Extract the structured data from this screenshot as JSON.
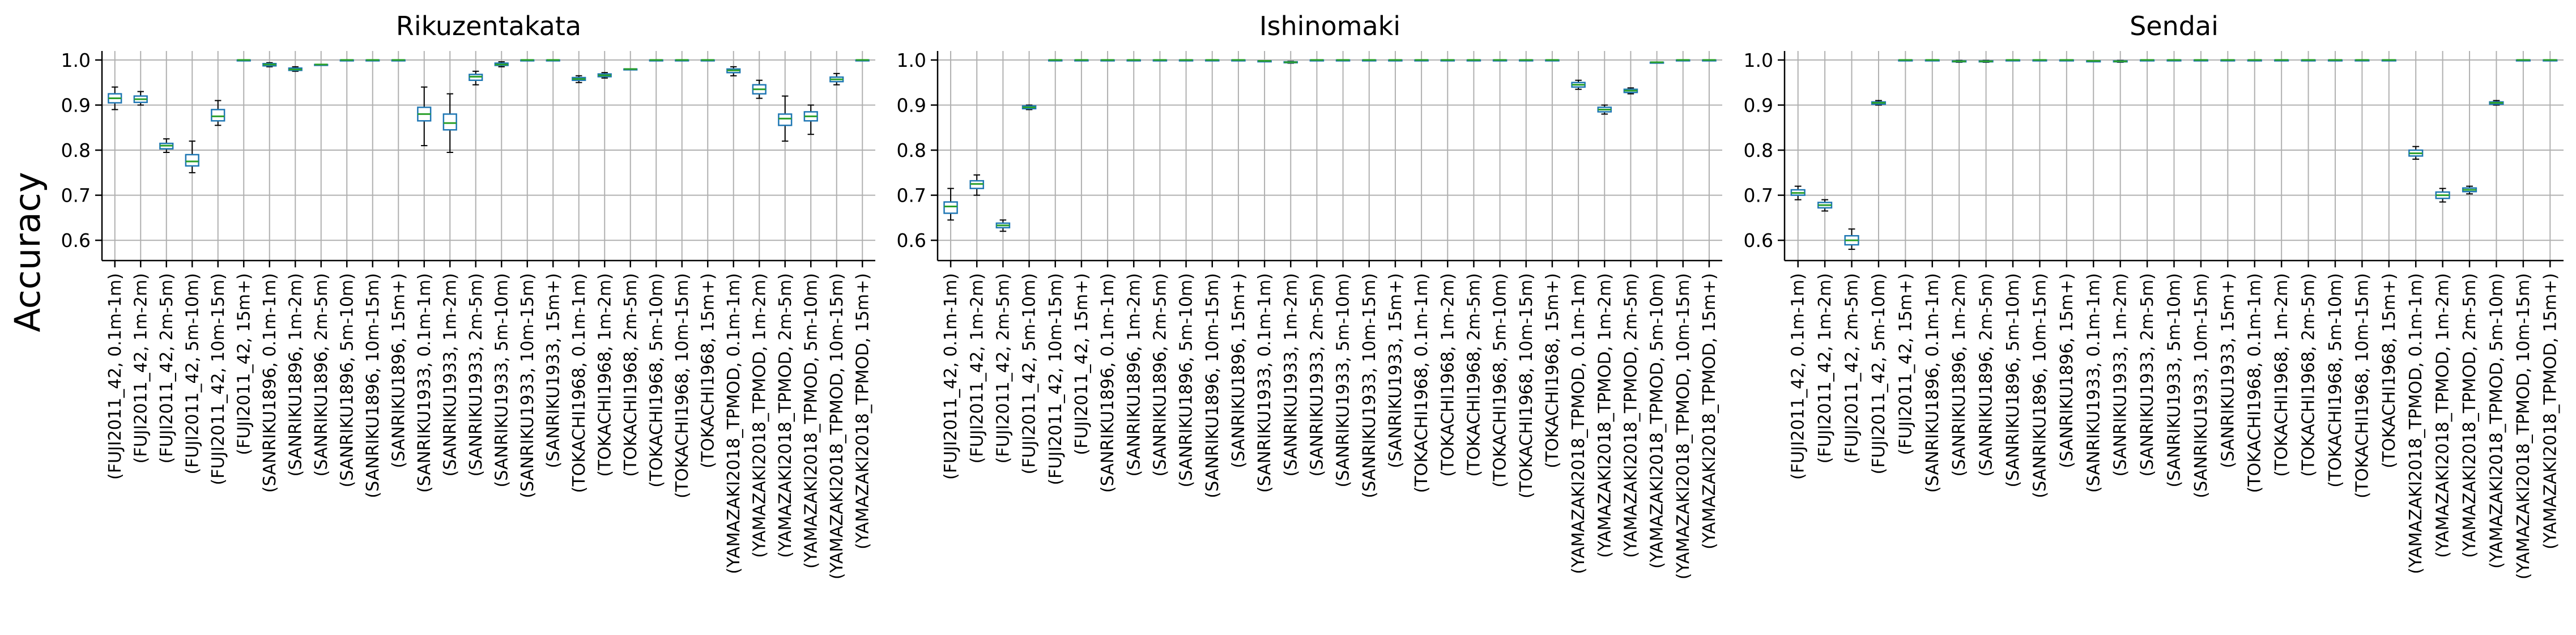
{
  "figure": {
    "ylabel": "Accuracy"
  },
  "chart_data": [
    {
      "type": "box",
      "title": "Rikuzentakata",
      "ylim": [
        0.555,
        1.02
      ],
      "yticks": [
        0.6,
        0.7,
        0.8,
        0.9,
        1.0
      ],
      "grid": true,
      "categories": [
        "(FUJI2011_42, 0.1m-1m)",
        "(FUJI2011_42, 1m-2m)",
        "(FUJI2011_42, 2m-5m)",
        "(FUJI2011_42, 5m-10m)",
        "(FUJI2011_42, 10m-15m)",
        "(FUJI2011_42, 15m+)",
        "(SANRIKU1896, 0.1m-1m)",
        "(SANRIKU1896, 1m-2m)",
        "(SANRIKU1896, 2m-5m)",
        "(SANRIKU1896, 5m-10m)",
        "(SANRIKU1896, 10m-15m)",
        "(SANRIKU1896, 15m+)",
        "(SANRIKU1933, 0.1m-1m)",
        "(SANRIKU1933, 1m-2m)",
        "(SANRIKU1933, 2m-5m)",
        "(SANRIKU1933, 5m-10m)",
        "(SANRIKU1933, 10m-15m)",
        "(SANRIKU1933, 15m+)",
        "(TOKACHI1968, 0.1m-1m)",
        "(TOKACHI1968, 1m-2m)",
        "(TOKACHI1968, 2m-5m)",
        "(TOKACHI1968, 5m-10m)",
        "(TOKACHI1968, 10m-15m)",
        "(TOKACHI1968, 15m+)",
        "(YAMAZAKI2018_TPMOD, 0.1m-1m)",
        "(YAMAZAKI2018_TPMOD, 1m-2m)",
        "(YAMAZAKI2018_TPMOD, 2m-5m)",
        "(YAMAZAKI2018_TPMOD, 5m-10m)",
        "(YAMAZAKI2018_TPMOD, 10m-15m)",
        "(YAMAZAKI2018_TPMOD, 15m+)"
      ],
      "boxes": [
        [
          0.89,
          0.905,
          0.915,
          0.925,
          0.94
        ],
        [
          0.9,
          0.906,
          0.913,
          0.92,
          0.93
        ],
        [
          0.795,
          0.803,
          0.81,
          0.815,
          0.825
        ],
        [
          0.75,
          0.765,
          0.775,
          0.79,
          0.82
        ],
        [
          0.855,
          0.865,
          0.875,
          0.89,
          0.91
        ],
        [
          1.0,
          1.0,
          1.0,
          1.0,
          1.0
        ],
        [
          0.985,
          0.987,
          0.99,
          0.992,
          0.994
        ],
        [
          0.975,
          0.977,
          0.979,
          0.982,
          0.985
        ],
        [
          0.99,
          0.99,
          0.99,
          0.99,
          0.99
        ],
        [
          1.0,
          1.0,
          1.0,
          1.0,
          1.0
        ],
        [
          1.0,
          1.0,
          1.0,
          1.0,
          1.0
        ],
        [
          1.0,
          1.0,
          1.0,
          1.0,
          1.0
        ],
        [
          0.81,
          0.865,
          0.88,
          0.895,
          0.94
        ],
        [
          0.795,
          0.845,
          0.86,
          0.88,
          0.925
        ],
        [
          0.945,
          0.955,
          0.963,
          0.968,
          0.975
        ],
        [
          0.985,
          0.988,
          0.99,
          0.993,
          0.996
        ],
        [
          1.0,
          1.0,
          1.0,
          1.0,
          1.0
        ],
        [
          1.0,
          1.0,
          1.0,
          1.0,
          1.0
        ],
        [
          0.95,
          0.955,
          0.958,
          0.961,
          0.965
        ],
        [
          0.96,
          0.963,
          0.966,
          0.969,
          0.972
        ],
        [
          0.98,
          0.98,
          0.98,
          0.98,
          0.98
        ],
        [
          1.0,
          1.0,
          1.0,
          1.0,
          1.0
        ],
        [
          1.0,
          1.0,
          1.0,
          1.0,
          1.0
        ],
        [
          1.0,
          1.0,
          1.0,
          1.0,
          1.0
        ],
        [
          0.965,
          0.972,
          0.977,
          0.98,
          0.985
        ],
        [
          0.915,
          0.925,
          0.935,
          0.945,
          0.955
        ],
        [
          0.82,
          0.855,
          0.87,
          0.88,
          0.92
        ],
        [
          0.835,
          0.865,
          0.875,
          0.885,
          0.9
        ],
        [
          0.945,
          0.952,
          0.957,
          0.962,
          0.97
        ],
        [
          1.0,
          1.0,
          1.0,
          1.0,
          1.0
        ]
      ]
    },
    {
      "type": "box",
      "title": "Ishinomaki",
      "ylim": [
        0.555,
        1.02
      ],
      "yticks": [
        0.6,
        0.7,
        0.8,
        0.9,
        1.0
      ],
      "grid": true,
      "categories": [
        "(FUJI2011_42, 0.1m-1m)",
        "(FUJI2011_42, 1m-2m)",
        "(FUJI2011_42, 2m-5m)",
        "(FUJI2011_42, 5m-10m)",
        "(FUJI2011_42, 10m-15m)",
        "(FUJI2011_42, 15m+)",
        "(SANRIKU1896, 0.1m-1m)",
        "(SANRIKU1896, 1m-2m)",
        "(SANRIKU1896, 2m-5m)",
        "(SANRIKU1896, 5m-10m)",
        "(SANRIKU1896, 10m-15m)",
        "(SANRIKU1896, 15m+)",
        "(SANRIKU1933, 0.1m-1m)",
        "(SANRIKU1933, 1m-2m)",
        "(SANRIKU1933, 2m-5m)",
        "(SANRIKU1933, 5m-10m)",
        "(SANRIKU1933, 10m-15m)",
        "(SANRIKU1933, 15m+)",
        "(TOKACHI1968, 0.1m-1m)",
        "(TOKACHI1968, 1m-2m)",
        "(TOKACHI1968, 2m-5m)",
        "(TOKACHI1968, 5m-10m)",
        "(TOKACHI1968, 10m-15m)",
        "(TOKACHI1968, 15m+)",
        "(YAMAZAKI2018_TPMOD, 0.1m-1m)",
        "(YAMAZAKI2018_TPMOD, 1m-2m)",
        "(YAMAZAKI2018_TPMOD, 2m-5m)",
        "(YAMAZAKI2018_TPMOD, 5m-10m)",
        "(YAMAZAKI2018_TPMOD, 10m-15m)",
        "(YAMAZAKI2018_TPMOD, 15m+)"
      ],
      "boxes": [
        [
          0.645,
          0.66,
          0.675,
          0.685,
          0.715
        ],
        [
          0.7,
          0.715,
          0.725,
          0.732,
          0.745
        ],
        [
          0.62,
          0.628,
          0.633,
          0.638,
          0.645
        ],
        [
          0.89,
          0.892,
          0.895,
          0.898,
          0.9
        ],
        [
          1.0,
          1.0,
          1.0,
          1.0,
          1.0
        ],
        [
          1.0,
          1.0,
          1.0,
          1.0,
          1.0
        ],
        [
          1.0,
          1.0,
          1.0,
          1.0,
          1.0
        ],
        [
          1.0,
          1.0,
          1.0,
          1.0,
          1.0
        ],
        [
          1.0,
          1.0,
          1.0,
          1.0,
          1.0
        ],
        [
          1.0,
          1.0,
          1.0,
          1.0,
          1.0
        ],
        [
          1.0,
          1.0,
          1.0,
          1.0,
          1.0
        ],
        [
          1.0,
          1.0,
          1.0,
          1.0,
          1.0
        ],
        [
          0.998,
          0.998,
          0.998,
          0.998,
          0.998
        ],
        [
          0.993,
          0.994,
          0.995,
          0.996,
          0.997
        ],
        [
          1.0,
          1.0,
          1.0,
          1.0,
          1.0
        ],
        [
          1.0,
          1.0,
          1.0,
          1.0,
          1.0
        ],
        [
          1.0,
          1.0,
          1.0,
          1.0,
          1.0
        ],
        [
          1.0,
          1.0,
          1.0,
          1.0,
          1.0
        ],
        [
          1.0,
          1.0,
          1.0,
          1.0,
          1.0
        ],
        [
          1.0,
          1.0,
          1.0,
          1.0,
          1.0
        ],
        [
          1.0,
          1.0,
          1.0,
          1.0,
          1.0
        ],
        [
          1.0,
          1.0,
          1.0,
          1.0,
          1.0
        ],
        [
          1.0,
          1.0,
          1.0,
          1.0,
          1.0
        ],
        [
          1.0,
          1.0,
          1.0,
          1.0,
          1.0
        ],
        [
          0.935,
          0.94,
          0.945,
          0.95,
          0.955
        ],
        [
          0.88,
          0.885,
          0.89,
          0.895,
          0.9
        ],
        [
          0.925,
          0.928,
          0.932,
          0.935,
          0.938
        ],
        [
          0.995,
          0.995,
          0.995,
          0.995,
          0.995
        ],
        [
          1.0,
          1.0,
          1.0,
          1.0,
          1.0
        ],
        [
          1.0,
          1.0,
          1.0,
          1.0,
          1.0
        ]
      ]
    },
    {
      "type": "box",
      "title": "Sendai",
      "ylim": [
        0.555,
        1.02
      ],
      "yticks": [
        0.6,
        0.7,
        0.8,
        0.9,
        1.0
      ],
      "grid": true,
      "categories": [
        "(FUJI2011_42, 0.1m-1m)",
        "(FUJI2011_42, 1m-2m)",
        "(FUJI2011_42, 2m-5m)",
        "(FUJI2011_42, 5m-10m)",
        "(FUJI2011_42, 15m+)",
        "(SANRIKU1896, 0.1m-1m)",
        "(SANRIKU1896, 1m-2m)",
        "(SANRIKU1896, 2m-5m)",
        "(SANRIKU1896, 5m-10m)",
        "(SANRIKU1896, 10m-15m)",
        "(SANRIKU1896, 15m+)",
        "(SANRIKU1933, 0.1m-1m)",
        "(SANRIKU1933, 1m-2m)",
        "(SANRIKU1933, 2m-5m)",
        "(SANRIKU1933, 5m-10m)",
        "(SANRIKU1933, 10m-15m)",
        "(SANRIKU1933, 15m+)",
        "(TOKACHI1968, 0.1m-1m)",
        "(TOKACHI1968, 1m-2m)",
        "(TOKACHI1968, 2m-5m)",
        "(TOKACHI1968, 5m-10m)",
        "(TOKACHI1968, 10m-15m)",
        "(TOKACHI1968, 15m+)",
        "(YAMAZAKI2018_TPMOD, 0.1m-1m)",
        "(YAMAZAKI2018_TPMOD, 1m-2m)",
        "(YAMAZAKI2018_TPMOD, 2m-5m)",
        "(YAMAZAKI2018_TPMOD, 5m-10m)",
        "(YAMAZAKI2018_TPMOD, 10m-15m)",
        "(YAMAZAKI2018_TPMOD, 15m+)"
      ],
      "boxes": [
        [
          0.69,
          0.7,
          0.705,
          0.712,
          0.72
        ],
        [
          0.665,
          0.672,
          0.678,
          0.684,
          0.69
        ],
        [
          0.58,
          0.59,
          0.6,
          0.61,
          0.625
        ],
        [
          0.9,
          0.902,
          0.905,
          0.907,
          0.91
        ],
        [
          1.0,
          1.0,
          1.0,
          1.0,
          1.0
        ],
        [
          1.0,
          1.0,
          1.0,
          1.0,
          1.0
        ],
        [
          0.995,
          0.996,
          0.997,
          0.998,
          0.999
        ],
        [
          0.995,
          0.996,
          0.997,
          0.998,
          0.999
        ],
        [
          1.0,
          1.0,
          1.0,
          1.0,
          1.0
        ],
        [
          1.0,
          1.0,
          1.0,
          1.0,
          1.0
        ],
        [
          1.0,
          1.0,
          1.0,
          1.0,
          1.0
        ],
        [
          0.998,
          0.998,
          0.998,
          0.998,
          0.998
        ],
        [
          0.995,
          0.996,
          0.997,
          0.998,
          0.999
        ],
        [
          1.0,
          1.0,
          1.0,
          1.0,
          1.0
        ],
        [
          1.0,
          1.0,
          1.0,
          1.0,
          1.0
        ],
        [
          1.0,
          1.0,
          1.0,
          1.0,
          1.0
        ],
        [
          1.0,
          1.0,
          1.0,
          1.0,
          1.0
        ],
        [
          1.0,
          1.0,
          1.0,
          1.0,
          1.0
        ],
        [
          1.0,
          1.0,
          1.0,
          1.0,
          1.0
        ],
        [
          1.0,
          1.0,
          1.0,
          1.0,
          1.0
        ],
        [
          1.0,
          1.0,
          1.0,
          1.0,
          1.0
        ],
        [
          1.0,
          1.0,
          1.0,
          1.0,
          1.0
        ],
        [
          1.0,
          1.0,
          1.0,
          1.0,
          1.0
        ],
        [
          0.78,
          0.787,
          0.793,
          0.8,
          0.808
        ],
        [
          0.685,
          0.693,
          0.7,
          0.707,
          0.715
        ],
        [
          0.703,
          0.708,
          0.712,
          0.716,
          0.72
        ],
        [
          0.9,
          0.902,
          0.905,
          0.907,
          0.91
        ],
        [
          1.0,
          1.0,
          1.0,
          1.0,
          1.0
        ],
        [
          1.0,
          1.0,
          1.0,
          1.0,
          1.0
        ]
      ]
    }
  ],
  "colors": {
    "box_edge": "#1f77b4",
    "median": "#2ca02c",
    "whisker": "#000000",
    "grid": "#b0b0b0",
    "axis": "#000000"
  }
}
